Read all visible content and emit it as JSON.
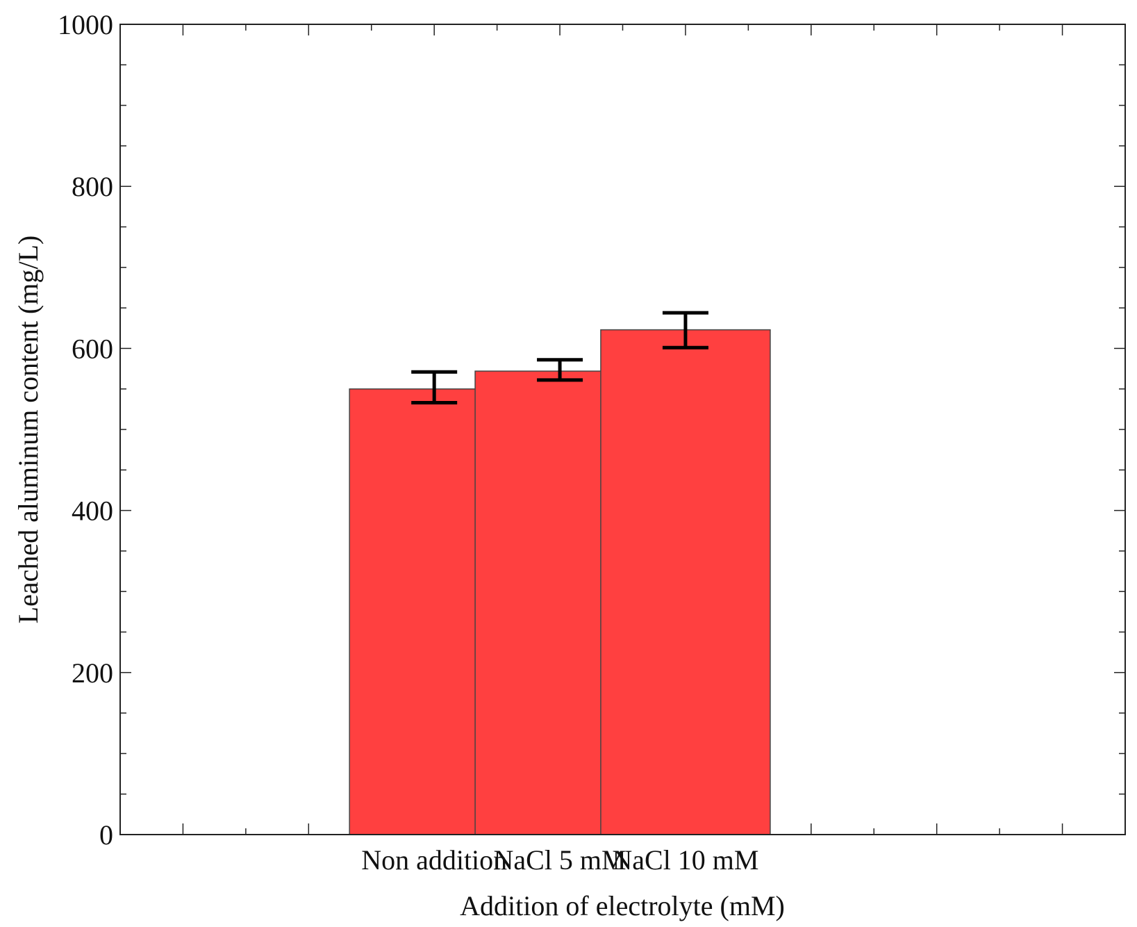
{
  "chart_data": {
    "type": "bar",
    "title": "",
    "xlabel": "Addition of electrolyte (mM)",
    "ylabel": "Leached aluminum content (mg/L)",
    "categories": [
      "Non addition",
      "NaCl 5 mM",
      "NaCl 10 mM"
    ],
    "values": [
      550,
      572,
      623
    ],
    "error_low": [
      533,
      561,
      601
    ],
    "error_high": [
      571,
      586,
      644
    ],
    "ylim": [
      0,
      1000
    ],
    "yticks": [
      0,
      200,
      400,
      600,
      800,
      1000
    ],
    "ytick_labels": [
      "0",
      "200",
      "400",
      "600",
      "800",
      "1000"
    ],
    "y_minor_step": 50,
    "x_minor_step": 0.5,
    "xlim": [
      -2.5,
      5.5
    ],
    "grid": false,
    "bar_color": "#ff4040",
    "bar_edge_color": "#444444",
    "errorbar_color": "#000000",
    "axis_color": "#222222"
  }
}
